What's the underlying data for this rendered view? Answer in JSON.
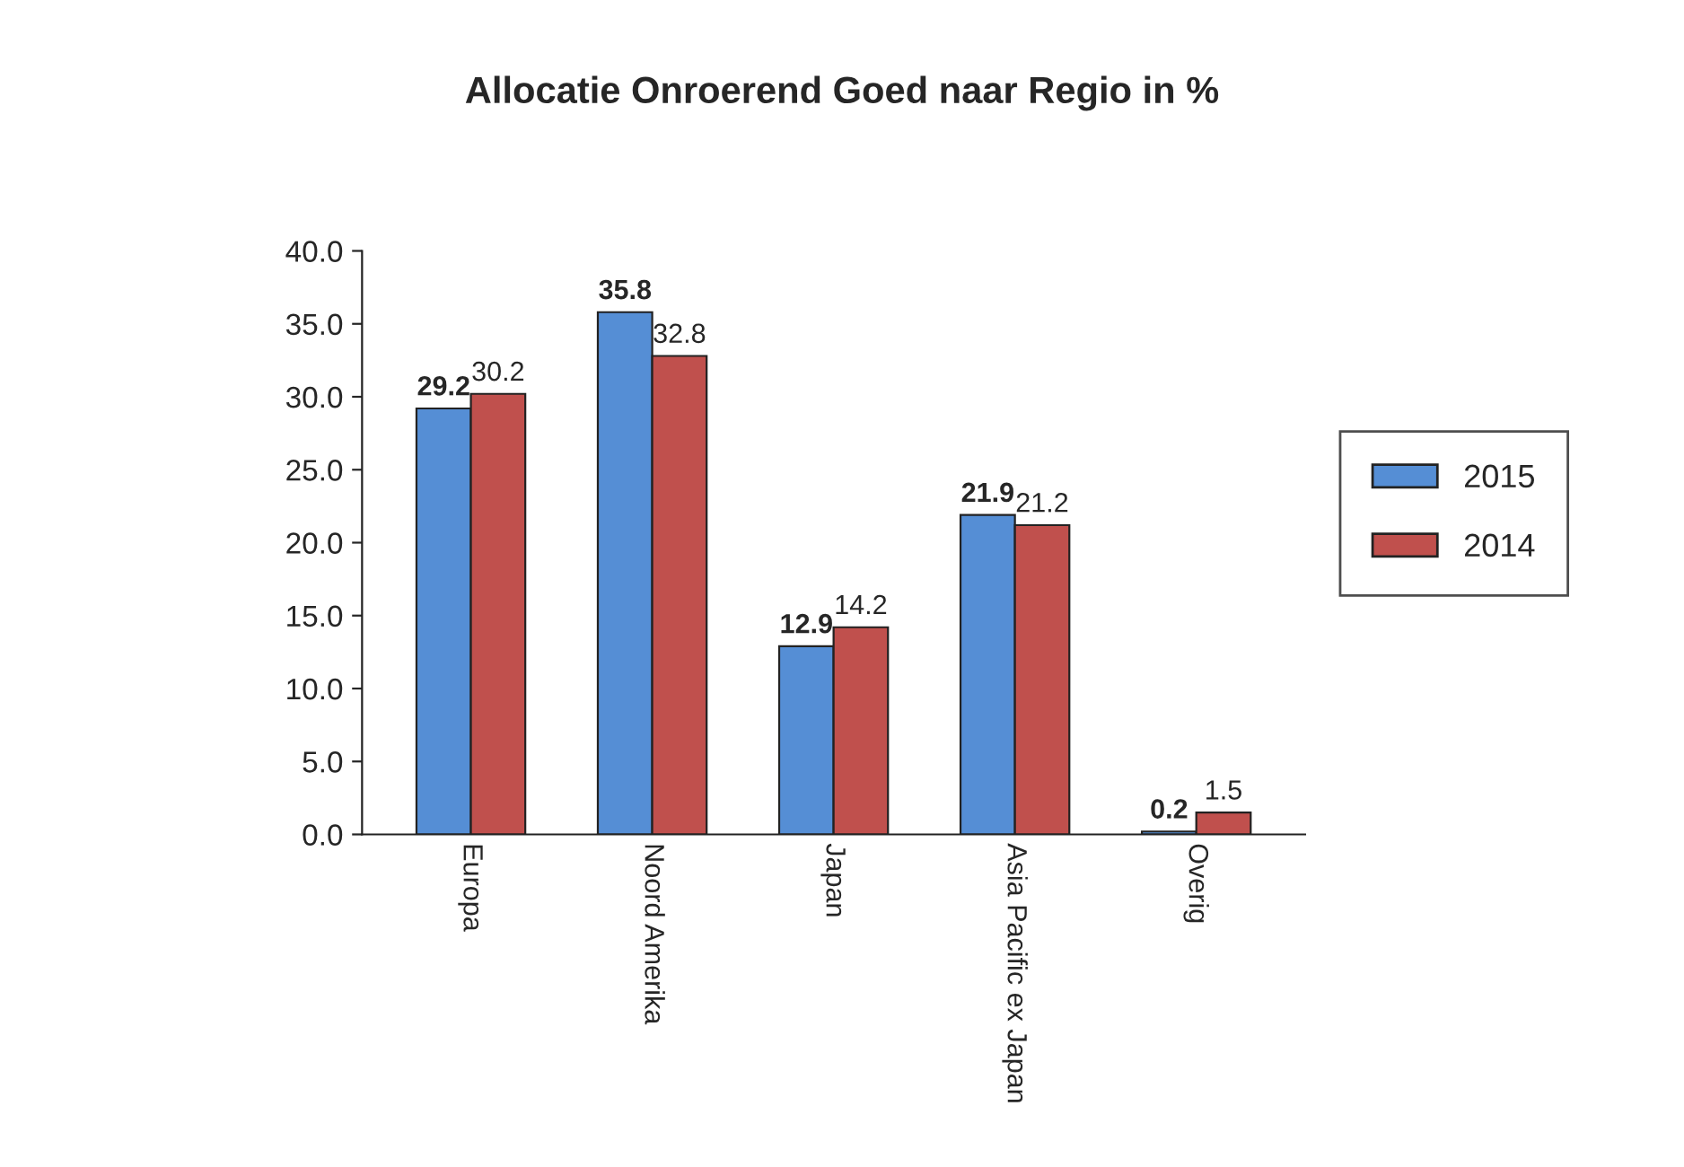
{
  "chart_data": {
    "type": "bar",
    "title": "Allocatie Onroerend Goed naar Regio in %",
    "categories": [
      "Europa",
      "Noord Amerika",
      "Japan",
      "Asia Pacific ex Japan",
      "Overig"
    ],
    "series": [
      {
        "name": "2015",
        "color": "#558ed5",
        "values": [
          29.2,
          35.8,
          12.9,
          21.9,
          0.2
        ]
      },
      {
        "name": "2014",
        "color": "#c0504d",
        "values": [
          30.2,
          32.8,
          14.2,
          21.2,
          1.5
        ]
      }
    ],
    "ylim": [
      0,
      40
    ],
    "yticks": [
      {
        "value": 0,
        "label": "0.0"
      },
      {
        "value": 5,
        "label": "5.0"
      },
      {
        "value": 10,
        "label": "10.0"
      },
      {
        "value": 15,
        "label": "15.0"
      },
      {
        "value": 20,
        "label": "20.0"
      },
      {
        "value": 25,
        "label": "25.0"
      },
      {
        "value": 30,
        "label": "30.0"
      },
      {
        "value": 35,
        "label": "35.0"
      },
      {
        "value": 40,
        "label": "40.0"
      }
    ],
    "data_labels": true,
    "legend": "right",
    "grid": false
  }
}
